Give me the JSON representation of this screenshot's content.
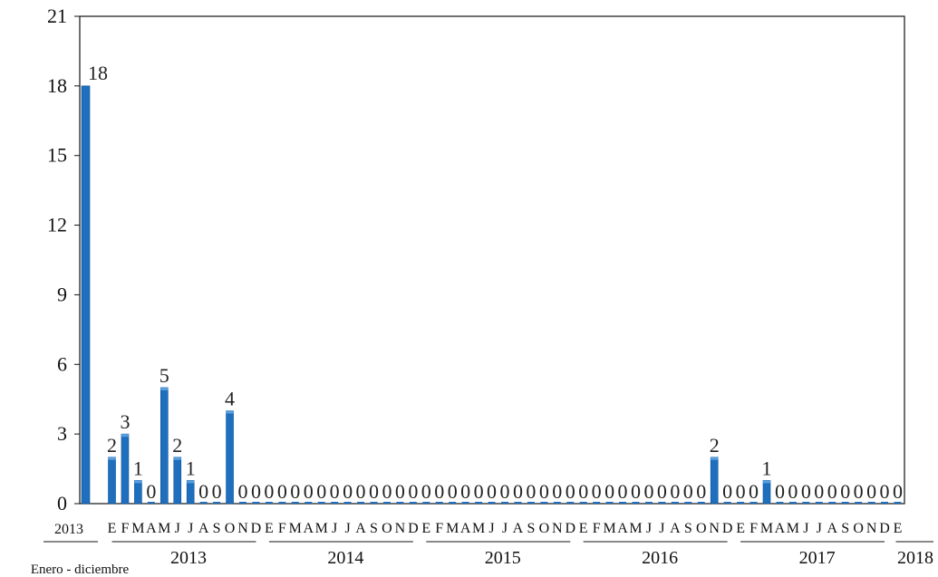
{
  "chart_data": {
    "type": "bar",
    "ylim": [
      0,
      21
    ],
    "yticks": [
      0,
      3,
      6,
      9,
      12,
      15,
      18,
      21
    ],
    "color": "#1f6fbf",
    "first_bar": {
      "label": "2013",
      "sublabel": "Enero - diciembre",
      "value": 18
    },
    "categories": [
      "E",
      "F",
      "M",
      "A",
      "M",
      "J",
      "J",
      "A",
      "S",
      "O",
      "N",
      "D",
      "E",
      "F",
      "M",
      "A",
      "M",
      "J",
      "J",
      "A",
      "S",
      "O",
      "N",
      "D",
      "E",
      "F",
      "M",
      "A",
      "M",
      "J",
      "J",
      "A",
      "S",
      "O",
      "N",
      "D",
      "E",
      "F",
      "M",
      "A",
      "M",
      "J",
      "J",
      "A",
      "S",
      "O",
      "N",
      "D",
      "E",
      "F",
      "M",
      "A",
      "M",
      "J",
      "J",
      "A",
      "S",
      "O",
      "N",
      "D",
      "E"
    ],
    "values": [
      2,
      3,
      1,
      0,
      5,
      2,
      1,
      0,
      0,
      4,
      0,
      0,
      0,
      0,
      0,
      0,
      0,
      0,
      0,
      0,
      0,
      0,
      0,
      0,
      0,
      0,
      0,
      0,
      0,
      0,
      0,
      0,
      0,
      0,
      0,
      0,
      0,
      0,
      0,
      0,
      0,
      0,
      0,
      0,
      0,
      0,
      2,
      0,
      0,
      0,
      1,
      0,
      0,
      0,
      0,
      0,
      0,
      0,
      0,
      0,
      0
    ],
    "years": [
      {
        "label": "2013",
        "start": 0,
        "end": 11
      },
      {
        "label": "2014",
        "start": 12,
        "end": 23
      },
      {
        "label": "2015",
        "start": 24,
        "end": 35
      },
      {
        "label": "2016",
        "start": 36,
        "end": 47
      },
      {
        "label": "2017",
        "start": 48,
        "end": 59
      },
      {
        "label": "2018",
        "start": 60,
        "end": 60
      }
    ]
  }
}
